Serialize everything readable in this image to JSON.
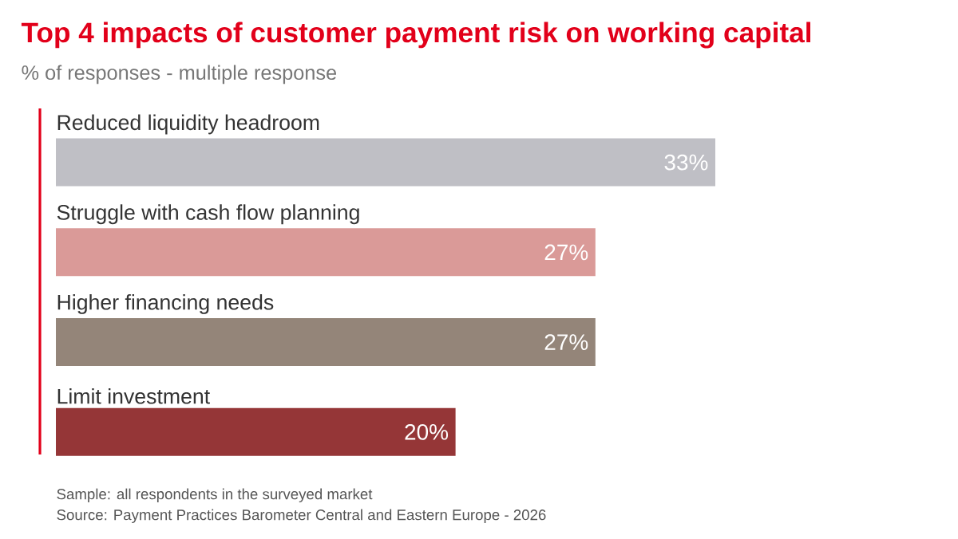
{
  "chart_data": {
    "type": "bar",
    "orientation": "horizontal",
    "title": "Top 4 impacts of customer payment risk on working capital",
    "subtitle": "% of responses - multiple response",
    "categories": [
      "Reduced liquidity headroom",
      "Struggle with cash flow planning",
      "Higher financing needs",
      "Limit investment"
    ],
    "values": [
      33,
      27,
      27,
      20
    ],
    "colors": [
      "#bfbfc5",
      "#da9a98",
      "#948579",
      "#953637"
    ],
    "value_labels": [
      "33%",
      "27%",
      "27%",
      "20%"
    ],
    "annotations": [
      "Sample: all respondents in the surveyed market",
      "Source: Payment Practices Barometer Central and Eastern Europe - 2026"
    ]
  }
}
